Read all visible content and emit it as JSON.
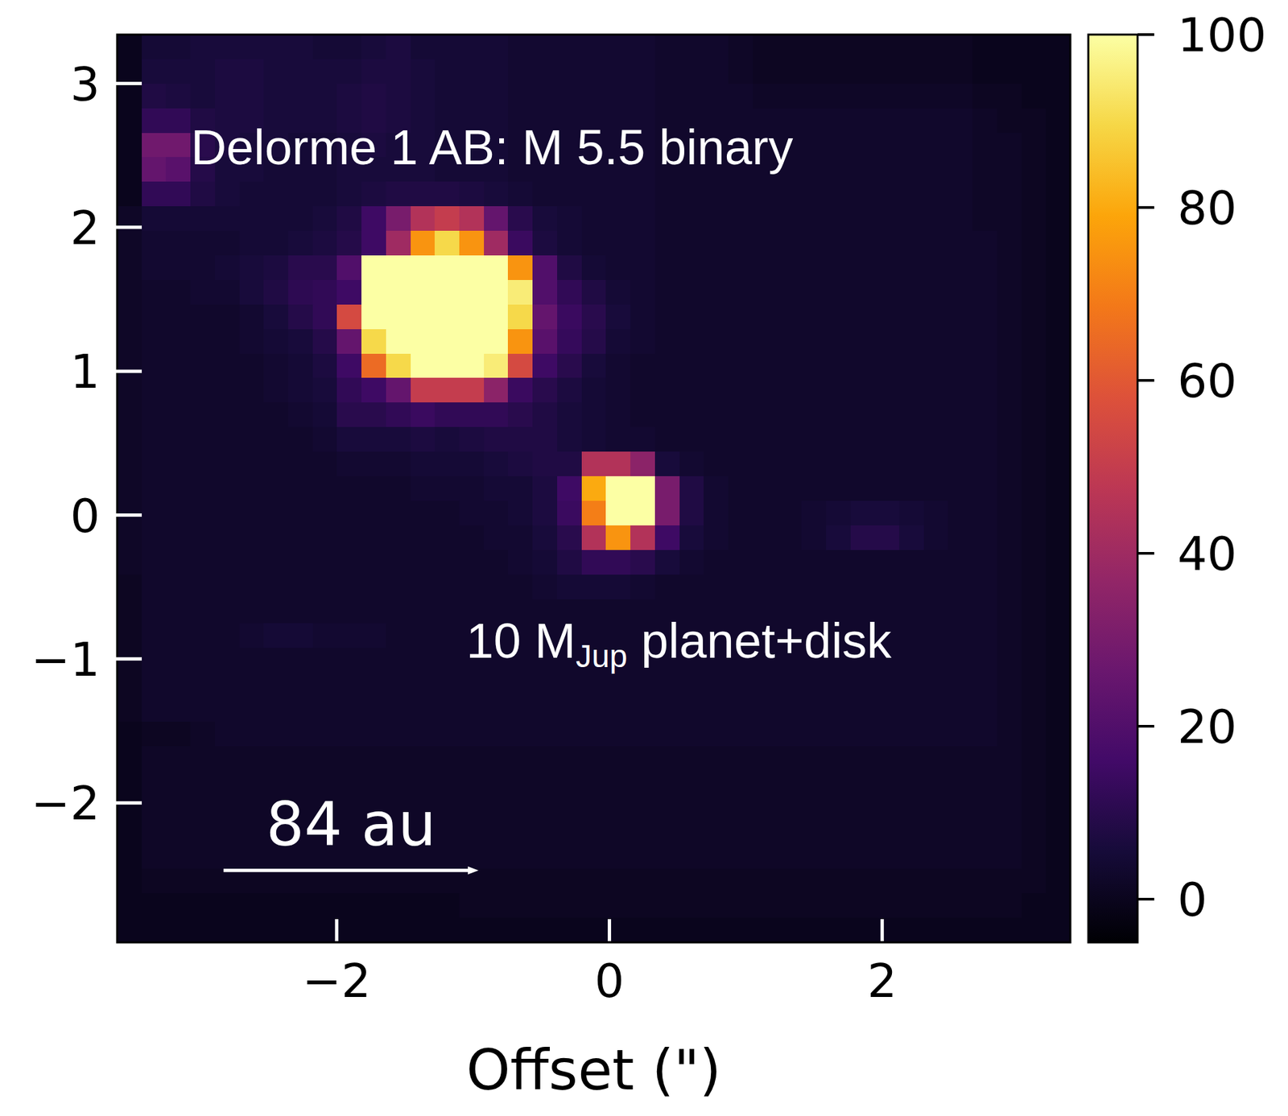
{
  "chart_data": {
    "type": "heatmap",
    "x_label": "Offset (\")",
    "xlim": [
      -3.61,
      3.38
    ],
    "ylim": [
      -2.97,
      3.34
    ],
    "xticks": [
      {
        "value": -2,
        "label": "−2"
      },
      0,
      2
    ],
    "yticks": [
      {
        "value": -2,
        "label": "−2"
      },
      {
        "value": -1,
        "label": "−1"
      },
      0,
      1,
      2,
      3
    ],
    "annotations": [
      {
        "text": "Delorme 1 AB: M 5.5 binary"
      },
      {
        "text": "10 M",
        "sub": "Jup",
        "tail": " planet+disk"
      }
    ],
    "scale_bar": {
      "label": "84 au",
      "length": 1.87
    },
    "colorbar": {
      "range": [
        -5,
        100
      ],
      "ticks": [
        0,
        20,
        40,
        60,
        80,
        100
      ]
    },
    "cells": [
      [
        0,
        5,
        5,
        6,
        6,
        6,
        6,
        6,
        5,
        5,
        6,
        7,
        5,
        5,
        5,
        5,
        4,
        4,
        4,
        4,
        4,
        4,
        3,
        3,
        3,
        2,
        1,
        1,
        1,
        1,
        1,
        1,
        1,
        1,
        1,
        0,
        0,
        0,
        0
      ],
      [
        0,
        6,
        6,
        6,
        7,
        7,
        6,
        6,
        6,
        6,
        7,
        7,
        6,
        5,
        5,
        5,
        4,
        4,
        4,
        4,
        4,
        4,
        3,
        3,
        3,
        2,
        1,
        1,
        1,
        1,
        1,
        1,
        1,
        1,
        1,
        0,
        0,
        0,
        0
      ],
      [
        0,
        8,
        7,
        6,
        7,
        7,
        6,
        6,
        6,
        7,
        8,
        7,
        6,
        5,
        5,
        5,
        4,
        4,
        4,
        4,
        4,
        4,
        3,
        3,
        3,
        3,
        2,
        2,
        2,
        2,
        2,
        2,
        2,
        2,
        2,
        1,
        1,
        0,
        0
      ],
      [
        0,
        12,
        12,
        8,
        7,
        7,
        6,
        6,
        6,
        7,
        8,
        7,
        6,
        5,
        5,
        5,
        4,
        4,
        4,
        4,
        4,
        4,
        3,
        3,
        3,
        3,
        3,
        3,
        3,
        3,
        3,
        3,
        3,
        3,
        3,
        2,
        1,
        1,
        0
      ],
      [
        0,
        28,
        28,
        10,
        7,
        6,
        6,
        5,
        5,
        6,
        7,
        6,
        6,
        5,
        5,
        5,
        4,
        4,
        4,
        4,
        4,
        4,
        3,
        3,
        3,
        3,
        3,
        3,
        3,
        3,
        3,
        3,
        3,
        3,
        3,
        2,
        2,
        1,
        0
      ],
      [
        0,
        25,
        22,
        9,
        6,
        6,
        5,
        5,
        5,
        6,
        6,
        6,
        6,
        5,
        5,
        5,
        4,
        4,
        4,
        4,
        4,
        4,
        3,
        3,
        3,
        3,
        3,
        3,
        3,
        3,
        3,
        3,
        3,
        3,
        3,
        2,
        2,
        1,
        0
      ],
      [
        0,
        12,
        12,
        8,
        6,
        5,
        5,
        5,
        5,
        6,
        7,
        8,
        8,
        8,
        7,
        6,
        5,
        4,
        4,
        4,
        4,
        4,
        3,
        3,
        3,
        3,
        3,
        3,
        3,
        3,
        3,
        3,
        3,
        3,
        3,
        2,
        2,
        1,
        0
      ],
      [
        2,
        5,
        5,
        5,
        5,
        5,
        5,
        5,
        6,
        8,
        15,
        30,
        45,
        50,
        45,
        25,
        10,
        6,
        5,
        4,
        4,
        4,
        3,
        3,
        3,
        3,
        3,
        3,
        3,
        3,
        3,
        3,
        3,
        3,
        3,
        2,
        2,
        1,
        0
      ],
      [
        2,
        4,
        4,
        4,
        4,
        5,
        5,
        6,
        7,
        9,
        15,
        40,
        75,
        90,
        75,
        40,
        14,
        7,
        5,
        4,
        4,
        4,
        3,
        3,
        3,
        3,
        3,
        3,
        3,
        3,
        3,
        3,
        3,
        3,
        3,
        3,
        2,
        1,
        0
      ],
      [
        2,
        4,
        4,
        4,
        5,
        6,
        7,
        10,
        10,
        20,
        100,
        100,
        100,
        100,
        100,
        100,
        75,
        20,
        8,
        5,
        4,
        4,
        3,
        3,
        3,
        3,
        3,
        3,
        3,
        3,
        3,
        3,
        3,
        3,
        3,
        3,
        2,
        1,
        0
      ],
      [
        2,
        3,
        3,
        4,
        4,
        6,
        8,
        11,
        12,
        15,
        100,
        100,
        100,
        100,
        100,
        100,
        95,
        20,
        12,
        8,
        5,
        4,
        3,
        3,
        3,
        3,
        3,
        3,
        3,
        3,
        3,
        3,
        3,
        3,
        3,
        3,
        2,
        1,
        0
      ],
      [
        2,
        3,
        3,
        3,
        3,
        4,
        6,
        9,
        12,
        55,
        100,
        100,
        100,
        100,
        100,
        100,
        90,
        25,
        14,
        10,
        6,
        4,
        3,
        3,
        3,
        3,
        3,
        3,
        3,
        3,
        3,
        3,
        3,
        3,
        3,
        3,
        2,
        1,
        0
      ],
      [
        2,
        3,
        3,
        3,
        3,
        4,
        5,
        6,
        9,
        25,
        90,
        100,
        100,
        100,
        100,
        100,
        75,
        22,
        13,
        9,
        5,
        4,
        3,
        3,
        3,
        3,
        3,
        3,
        3,
        3,
        3,
        3,
        3,
        3,
        3,
        3,
        2,
        1,
        0
      ],
      [
        2,
        3,
        3,
        3,
        3,
        3,
        4,
        5,
        7,
        15,
        65,
        90,
        100,
        100,
        100,
        95,
        55,
        15,
        10,
        6,
        4,
        3,
        3,
        3,
        3,
        3,
        3,
        3,
        3,
        3,
        3,
        3,
        3,
        3,
        3,
        3,
        2,
        1,
        0
      ],
      [
        2,
        3,
        3,
        3,
        3,
        3,
        4,
        5,
        6,
        12,
        15,
        25,
        50,
        50,
        50,
        35,
        14,
        10,
        7,
        5,
        4,
        3,
        3,
        3,
        3,
        3,
        3,
        3,
        3,
        3,
        3,
        3,
        3,
        3,
        3,
        3,
        2,
        1,
        0
      ],
      [
        2,
        3,
        3,
        3,
        3,
        3,
        3,
        4,
        5,
        10,
        10,
        12,
        14,
        12,
        12,
        12,
        10,
        8,
        6,
        5,
        4,
        3,
        3,
        3,
        3,
        3,
        3,
        3,
        3,
        3,
        3,
        3,
        3,
        3,
        3,
        3,
        2,
        1,
        0
      ],
      [
        2,
        3,
        3,
        3,
        3,
        3,
        3,
        3,
        4,
        6,
        6,
        6,
        7,
        6,
        7,
        8,
        8,
        8,
        6,
        5,
        4,
        4,
        3,
        3,
        3,
        3,
        3,
        3,
        3,
        3,
        3,
        3,
        3,
        3,
        3,
        3,
        2,
        1,
        0
      ],
      [
        2,
        3,
        3,
        3,
        3,
        3,
        3,
        3,
        3,
        4,
        4,
        4,
        5,
        5,
        5,
        6,
        7,
        8,
        8,
        45,
        45,
        35,
        6,
        4,
        3,
        3,
        3,
        3,
        3,
        3,
        3,
        3,
        3,
        3,
        3,
        3,
        2,
        1,
        0
      ],
      [
        2,
        3,
        3,
        3,
        3,
        3,
        3,
        3,
        3,
        3,
        3,
        3,
        4,
        4,
        4,
        5,
        5,
        7,
        15,
        80,
        100,
        100,
        30,
        8,
        4,
        3,
        3,
        3,
        3,
        3,
        3,
        3,
        3,
        3,
        3,
        3,
        2,
        1,
        0
      ],
      [
        2,
        3,
        3,
        3,
        3,
        3,
        3,
        3,
        3,
        3,
        3,
        3,
        3,
        3,
        4,
        4,
        5,
        7,
        14,
        70,
        100,
        100,
        30,
        8,
        4,
        3,
        3,
        3,
        4,
        5,
        6,
        6,
        5,
        4,
        3,
        3,
        2,
        1,
        0
      ],
      [
        2,
        3,
        3,
        3,
        3,
        3,
        3,
        3,
        3,
        3,
        3,
        3,
        3,
        3,
        3,
        4,
        4,
        6,
        10,
        45,
        75,
        45,
        15,
        6,
        4,
        3,
        3,
        3,
        4,
        6,
        9,
        9,
        6,
        4,
        3,
        3,
        2,
        1,
        0
      ],
      [
        2,
        3,
        3,
        3,
        3,
        3,
        3,
        3,
        3,
        3,
        3,
        3,
        3,
        3,
        3,
        3,
        4,
        5,
        8,
        12,
        12,
        10,
        6,
        4,
        3,
        3,
        3,
        3,
        3,
        3,
        3,
        3,
        3,
        3,
        3,
        3,
        2,
        1,
        0
      ],
      [
        1,
        3,
        3,
        3,
        3,
        3,
        3,
        3,
        3,
        3,
        3,
        3,
        3,
        3,
        3,
        3,
        3,
        4,
        5,
        5,
        5,
        4,
        3,
        3,
        3,
        3,
        3,
        3,
        3,
        3,
        3,
        3,
        3,
        3,
        3,
        3,
        2,
        1,
        0
      ],
      [
        1,
        3,
        3,
        3,
        3,
        3,
        3,
        3,
        3,
        3,
        3,
        3,
        3,
        3,
        3,
        3,
        3,
        3,
        3,
        3,
        3,
        3,
        3,
        3,
        3,
        3,
        3,
        3,
        3,
        3,
        3,
        3,
        3,
        3,
        3,
        3,
        2,
        1,
        0
      ],
      [
        1,
        3,
        3,
        3,
        3,
        4,
        5,
        5,
        4,
        4,
        4,
        3,
        3,
        3,
        3,
        3,
        3,
        3,
        3,
        3,
        3,
        3,
        3,
        3,
        3,
        3,
        3,
        3,
        3,
        3,
        3,
        3,
        3,
        3,
        3,
        3,
        2,
        1,
        0
      ],
      [
        1,
        3,
        3,
        3,
        3,
        3,
        3,
        3,
        3,
        3,
        3,
        3,
        3,
        3,
        3,
        3,
        3,
        3,
        3,
        3,
        3,
        3,
        3,
        3,
        3,
        3,
        3,
        3,
        3,
        3,
        3,
        3,
        3,
        3,
        3,
        3,
        2,
        1,
        0
      ],
      [
        1,
        3,
        3,
        3,
        3,
        3,
        3,
        3,
        3,
        3,
        3,
        3,
        3,
        3,
        3,
        3,
        3,
        3,
        3,
        3,
        3,
        3,
        3,
        3,
        3,
        3,
        3,
        3,
        3,
        3,
        3,
        3,
        3,
        3,
        3,
        3,
        2,
        1,
        0
      ],
      [
        1,
        3,
        3,
        3,
        3,
        3,
        3,
        3,
        3,
        3,
        3,
        3,
        3,
        3,
        3,
        3,
        3,
        3,
        3,
        3,
        3,
        3,
        3,
        3,
        3,
        3,
        3,
        3,
        3,
        3,
        3,
        3,
        3,
        3,
        3,
        3,
        2,
        1,
        0
      ],
      [
        0,
        1,
        1,
        2,
        3,
        3,
        3,
        3,
        3,
        3,
        3,
        3,
        3,
        3,
        3,
        3,
        3,
        3,
        3,
        3,
        3,
        3,
        3,
        3,
        3,
        3,
        3,
        3,
        3,
        3,
        3,
        3,
        3,
        3,
        3,
        3,
        2,
        1,
        0
      ],
      [
        0,
        2,
        2,
        2,
        2,
        2,
        2,
        2,
        2,
        2,
        2,
        2,
        2,
        2,
        2,
        2,
        2,
        2,
        2,
        2,
        2,
        2,
        2,
        2,
        2,
        2,
        2,
        2,
        2,
        2,
        2,
        2,
        2,
        2,
        2,
        2,
        2,
        1,
        0
      ],
      [
        0,
        2,
        2,
        2,
        2,
        2,
        2,
        2,
        2,
        2,
        2,
        2,
        2,
        2,
        2,
        2,
        2,
        2,
        2,
        2,
        2,
        2,
        2,
        2,
        2,
        2,
        2,
        2,
        2,
        2,
        2,
        2,
        2,
        2,
        2,
        2,
        2,
        1,
        0
      ],
      [
        0,
        2,
        2,
        2,
        2,
        2,
        2,
        2,
        2,
        2,
        2,
        2,
        2,
        2,
        2,
        2,
        2,
        2,
        2,
        2,
        2,
        2,
        2,
        2,
        2,
        2,
        2,
        2,
        2,
        2,
        2,
        2,
        2,
        2,
        2,
        2,
        2,
        1,
        0
      ],
      [
        0,
        2,
        2,
        2,
        2,
        2,
        2,
        2,
        2,
        2,
        2,
        2,
        2,
        2,
        2,
        2,
        2,
        2,
        2,
        2,
        2,
        2,
        2,
        2,
        2,
        2,
        2,
        2,
        2,
        2,
        2,
        2,
        2,
        2,
        2,
        2,
        2,
        1,
        0
      ],
      [
        0,
        2,
        2,
        2,
        2,
        2,
        2,
        2,
        2,
        2,
        2,
        2,
        2,
        2,
        2,
        2,
        2,
        2,
        2,
        2,
        2,
        2,
        2,
        2,
        2,
        2,
        2,
        2,
        2,
        2,
        2,
        2,
        2,
        2,
        2,
        2,
        2,
        1,
        0
      ],
      [
        0,
        1,
        1,
        1,
        1,
        1,
        1,
        1,
        1,
        1,
        1,
        1,
        1,
        1,
        1,
        1,
        1,
        1,
        1,
        1,
        1,
        1,
        1,
        1,
        1,
        1,
        1,
        1,
        1,
        1,
        1,
        1,
        1,
        1,
        1,
        1,
        1,
        1,
        0
      ],
      [
        0,
        0,
        0,
        0,
        0,
        0,
        0,
        0,
        0,
        0,
        0,
        0,
        0,
        0,
        1,
        1,
        1,
        1,
        1,
        1,
        1,
        1,
        1,
        1,
        1,
        1,
        1,
        1,
        1,
        1,
        1,
        1,
        1,
        1,
        1,
        1,
        1,
        0,
        0
      ],
      [
        0,
        0,
        0,
        0,
        0,
        0,
        0,
        0,
        0,
        0,
        0,
        0,
        0,
        0,
        0,
        0,
        0,
        0,
        0,
        0,
        0,
        0,
        0,
        0,
        0,
        0,
        0,
        0,
        0,
        0,
        0,
        0,
        0,
        0,
        0,
        0,
        0,
        0,
        0
      ]
    ]
  }
}
